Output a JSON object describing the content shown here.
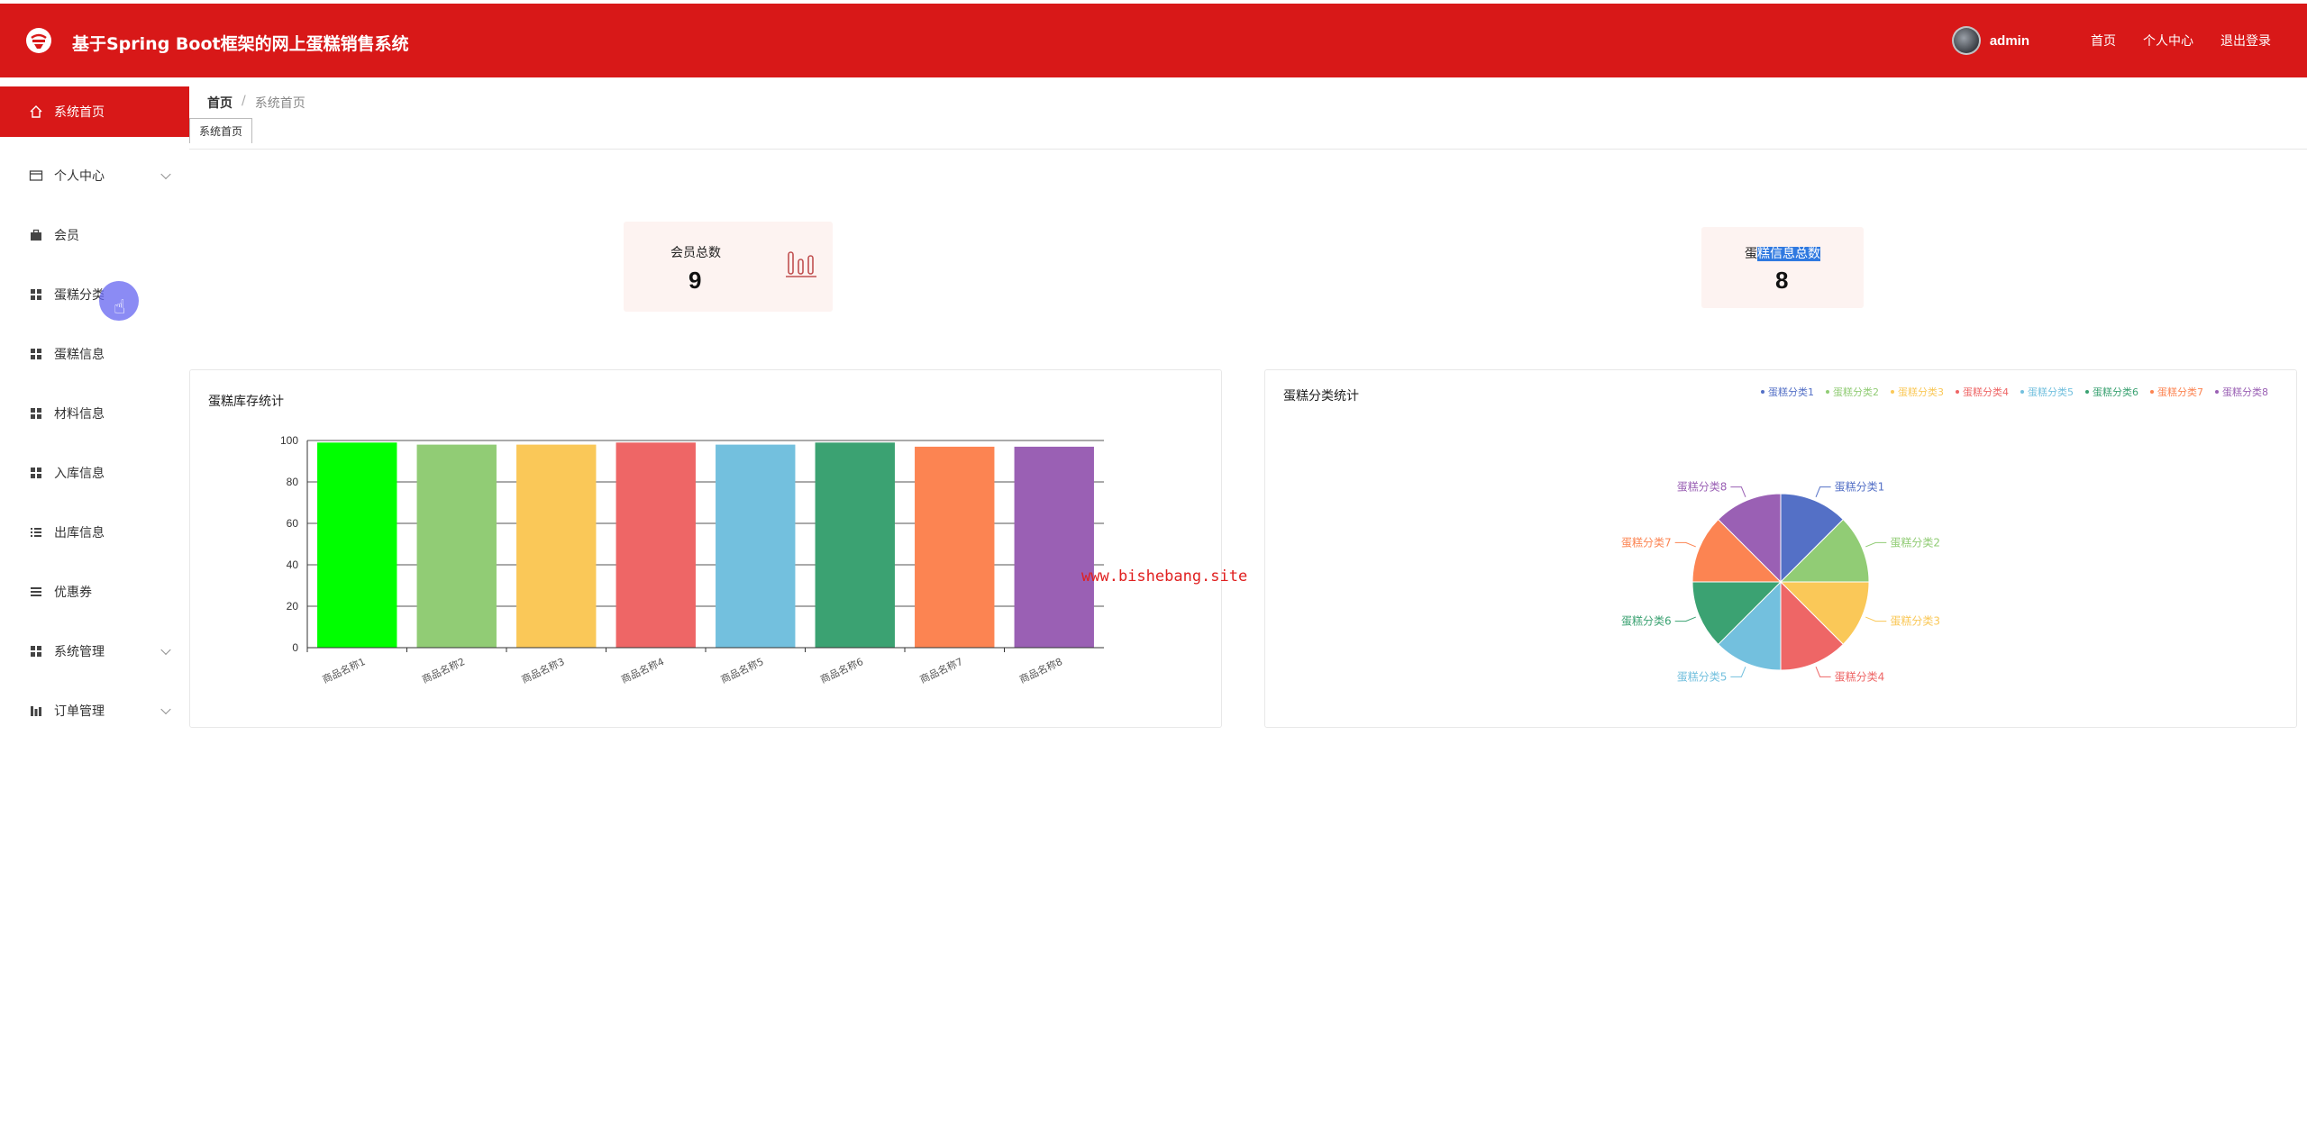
{
  "header": {
    "title": "基于Spring Boot框架的网上蛋糕销售系统",
    "username": "admin",
    "links": [
      "首页",
      "个人中心",
      "退出登录"
    ]
  },
  "sidebar": {
    "items": [
      {
        "label": "系统首页",
        "icon": "home-icon",
        "active": true,
        "expandable": false
      },
      {
        "label": "个人中心",
        "icon": "id-card-icon",
        "active": false,
        "expandable": true
      },
      {
        "label": "会员",
        "icon": "briefcase-icon",
        "active": false,
        "expandable": false
      },
      {
        "label": "蛋糕分类",
        "icon": "grid-icon",
        "active": false,
        "expandable": false
      },
      {
        "label": "蛋糕信息",
        "icon": "grid-icon",
        "active": false,
        "expandable": false
      },
      {
        "label": "材料信息",
        "icon": "grid-icon",
        "active": false,
        "expandable": false
      },
      {
        "label": "入库信息",
        "icon": "grid-icon",
        "active": false,
        "expandable": false
      },
      {
        "label": "出库信息",
        "icon": "list-icon",
        "active": false,
        "expandable": false
      },
      {
        "label": "优惠券",
        "icon": "menu-icon",
        "active": false,
        "expandable": false
      },
      {
        "label": "系统管理",
        "icon": "grid-icon",
        "active": false,
        "expandable": true
      },
      {
        "label": "订单管理",
        "icon": "chart-icon",
        "active": false,
        "expandable": true
      }
    ]
  },
  "breadcrumb": {
    "home": "首页",
    "separator": "/",
    "current": "系统首页"
  },
  "tags": [
    "系统首页"
  ],
  "stats": [
    {
      "label": "会员总数",
      "value": "9",
      "icon": "bar-chart-icon"
    },
    {
      "label_prefix": "蛋",
      "label_selected": "糕信息总数",
      "value": "8"
    }
  ],
  "watermark": "www.bishebang.site",
  "chart_data": [
    {
      "type": "bar",
      "title": "蛋糕库存统计",
      "categories": [
        "商品名称1",
        "商品名称2",
        "商品名称3",
        "商品名称4",
        "商品名称5",
        "商品名称6",
        "商品名称7",
        "商品名称8"
      ],
      "values": [
        99,
        98,
        98,
        99,
        98,
        99,
        97,
        97
      ],
      "colors": [
        "#00ff00",
        "#91cc75",
        "#fac858",
        "#ee6666",
        "#73c0de",
        "#3ba272",
        "#fc8452",
        "#9a60b4"
      ],
      "ylim": [
        0,
        100
      ],
      "yticks": [
        0,
        20,
        40,
        60,
        80,
        100
      ],
      "grid": true
    },
    {
      "type": "pie",
      "title": "蛋糕分类统计",
      "labels": [
        "蛋糕分类1",
        "蛋糕分类2",
        "蛋糕分类3",
        "蛋糕分类4",
        "蛋糕分类5",
        "蛋糕分类6",
        "蛋糕分类7",
        "蛋糕分类8"
      ],
      "values": [
        1,
        1,
        1,
        1,
        1,
        1,
        1,
        1
      ],
      "colors": [
        "#5470c6",
        "#91cc75",
        "#fac858",
        "#ee6666",
        "#73c0de",
        "#3ba272",
        "#fc8452",
        "#9a60b4"
      ],
      "legend": "top-right"
    }
  ]
}
